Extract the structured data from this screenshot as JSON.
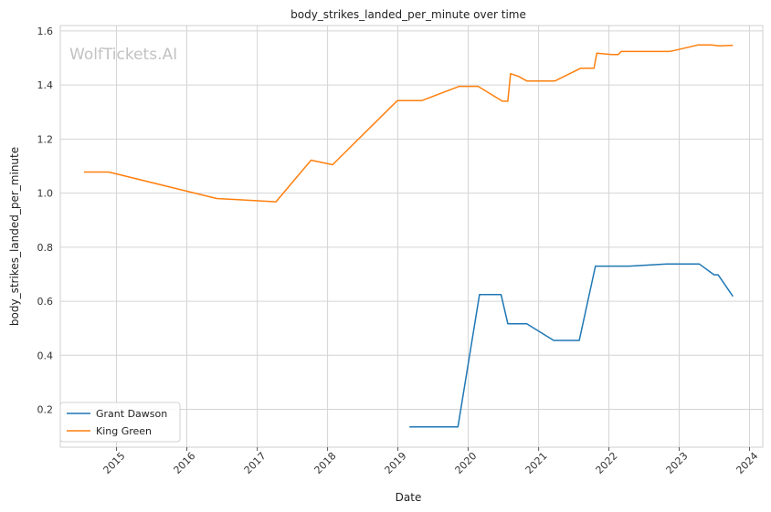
{
  "chart_data": {
    "type": "line",
    "title": "body_strikes_landed_per_minute over time",
    "xlabel": "Date",
    "ylabel": "body_strikes_landed_per_minute",
    "watermark": "WolfTickets.AI",
    "xlim": [
      "2014-03-15",
      "2024-03-10"
    ],
    "ylim": [
      0.06,
      1.62
    ],
    "x_ticks": [
      "2015",
      "2016",
      "2017",
      "2018",
      "2019",
      "2020",
      "2021",
      "2022",
      "2023",
      "2024"
    ],
    "y_ticks": [
      "0.2",
      "0.4",
      "0.6",
      "0.8",
      "1.0",
      "1.2",
      "1.4",
      "1.6"
    ],
    "grid": true,
    "legend_position": "lower-left",
    "series": [
      {
        "name": "Grant Dawson",
        "color": "#1f77b4",
        "points": [
          [
            "2019-03-02",
            0.135
          ],
          [
            "2019-11-09",
            0.135
          ],
          [
            "2020-02-29",
            0.625
          ],
          [
            "2020-06-20",
            0.625
          ],
          [
            "2020-07-25",
            0.517
          ],
          [
            "2020-10-31",
            0.517
          ],
          [
            "2021-03-20",
            0.455
          ],
          [
            "2021-07-31",
            0.455
          ],
          [
            "2021-10-23",
            0.73
          ],
          [
            "2022-02-19",
            0.73
          ],
          [
            "2022-04-16",
            0.73
          ],
          [
            "2022-10-29",
            0.738
          ],
          [
            "2023-04-15",
            0.738
          ],
          [
            "2023-07-01",
            0.698
          ],
          [
            "2023-07-22",
            0.698
          ],
          [
            "2023-10-07",
            0.618
          ]
        ]
      },
      {
        "name": "King Green",
        "color": "#ff7f0e",
        "points": [
          [
            "2014-07-16",
            1.078
          ],
          [
            "2014-11-22",
            1.078
          ],
          [
            "2016-06-04",
            0.98
          ],
          [
            "2017-04-08",
            0.968
          ],
          [
            "2017-10-07",
            1.122
          ],
          [
            "2018-01-27",
            1.105
          ],
          [
            "2018-12-29",
            1.342
          ],
          [
            "2019-05-04",
            1.342
          ],
          [
            "2019-11-16",
            1.395
          ],
          [
            "2020-02-22",
            1.395
          ],
          [
            "2020-06-27",
            1.34
          ],
          [
            "2020-07-25",
            1.34
          ],
          [
            "2020-08-08",
            1.442
          ],
          [
            "2020-09-19",
            1.432
          ],
          [
            "2020-10-31",
            1.415
          ],
          [
            "2021-03-27",
            1.415
          ],
          [
            "2021-08-07",
            1.462
          ],
          [
            "2021-10-16",
            1.462
          ],
          [
            "2021-10-30",
            1.518
          ],
          [
            "2022-01-15",
            1.513
          ],
          [
            "2022-02-19",
            1.513
          ],
          [
            "2022-03-05",
            1.524
          ],
          [
            "2022-11-12",
            1.524
          ],
          [
            "2022-12-10",
            1.528
          ],
          [
            "2023-04-08",
            1.548
          ],
          [
            "2023-06-17",
            1.548
          ],
          [
            "2023-07-29",
            1.545
          ],
          [
            "2023-10-07",
            1.547
          ]
        ]
      }
    ]
  }
}
